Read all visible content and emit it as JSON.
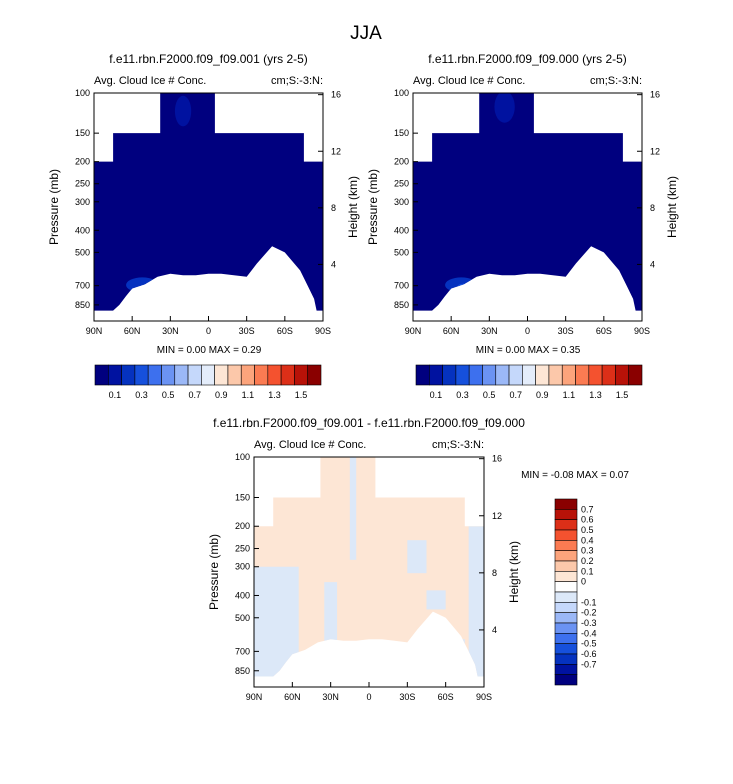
{
  "figure": {
    "title": "JJA"
  },
  "colors": {
    "abs_scale": [
      "#00007f",
      "#0012a0",
      "#0532bf",
      "#1650dc",
      "#3d70ee",
      "#6b93f3",
      "#9bb8f7",
      "#c5d8fb",
      "#e4edfb",
      "#fde6d5",
      "#fcc8aa",
      "#fca47c",
      "#fb7b52",
      "#f4522f",
      "#dc2f18",
      "#b81208",
      "#8a0000"
    ],
    "diff_scale": [
      "#00007f",
      "#0012a0",
      "#0532bf",
      "#1650dc",
      "#3d70ee",
      "#6b93f3",
      "#9bb8f7",
      "#c5d8fb",
      "#dce8f8",
      "#ffffff",
      "#fde6d5",
      "#fcc8aa",
      "#fca47c",
      "#fb7b52",
      "#f4522f",
      "#dc2f18",
      "#b81208",
      "#8a0000"
    ]
  },
  "chart_data": [
    {
      "type": "heatmap",
      "title": "f.e11.rbn.F2000.f09_f09.001 (yrs 2-5)",
      "left_string": "Avg. Cloud Ice # Conc.",
      "right_string": "cm;S:-3:N:",
      "xlabel": "",
      "ylabel": "Pressure (mb)",
      "y2label": "Height (km)",
      "x_ticks": [
        "90N",
        "60N",
        "30N",
        "0",
        "30S",
        "60S",
        "90S"
      ],
      "y_ticks": [
        "100",
        "150",
        "200",
        "250",
        "300",
        "400",
        "500",
        "700",
        "850"
      ],
      "y2_ticks": [
        "16",
        "12",
        "8",
        "4"
      ],
      "stats": {
        "min_label": "MIN =",
        "min": "0.00",
        "max_label": "MAX =",
        "max": "0.29"
      },
      "colorbar_labels": [
        "0.1",
        "0.3",
        "0.5",
        "0.7",
        "0.9",
        "1.1",
        "1.3",
        "1.5"
      ],
      "background_level": 0.05,
      "blobs": [
        {
          "lat": 52,
          "p": 695,
          "value": 0.2,
          "rx": 8,
          "dp": 55
        },
        {
          "lat": 50,
          "p": 705,
          "value": 0.29,
          "rx": 3,
          "dp": 20
        },
        {
          "lat": 20,
          "p": 120,
          "value": 0.12,
          "rx": 4,
          "dp": 20
        },
        {
          "lat": -85,
          "p": 170,
          "value": 0.12,
          "rx": 4,
          "dp": 15
        }
      ]
    },
    {
      "type": "heatmap",
      "title": "f.e11.rbn.F2000.f09_f09.000 (yrs 2-5)",
      "left_string": "Avg. Cloud Ice # Conc.",
      "right_string": "cm;S:-3:N:",
      "xlabel": "",
      "ylabel": "Pressure (mb)",
      "y2label": "Height (km)",
      "x_ticks": [
        "90N",
        "60N",
        "30N",
        "0",
        "30S",
        "60S",
        "90S"
      ],
      "y_ticks": [
        "100",
        "150",
        "200",
        "250",
        "300",
        "400",
        "500",
        "700",
        "850"
      ],
      "y2_ticks": [
        "16",
        "12",
        "8",
        "4"
      ],
      "stats": {
        "min_label": "MIN =",
        "min": "0.00",
        "max_label": "MAX =",
        "max": "0.35"
      },
      "colorbar_labels": [
        "0.1",
        "0.3",
        "0.5",
        "0.7",
        "0.9",
        "1.1",
        "1.3",
        "1.5"
      ],
      "background_level": 0.05,
      "blobs": [
        {
          "lat": 52,
          "p": 695,
          "value": 0.2,
          "rx": 8,
          "dp": 55
        },
        {
          "lat": 50,
          "p": 705,
          "value": 0.35,
          "rx": 3,
          "dp": 20
        },
        {
          "lat": 18,
          "p": 115,
          "value": 0.12,
          "rx": 5,
          "dp": 20
        },
        {
          "lat": -85,
          "p": 165,
          "value": 0.12,
          "rx": 4,
          "dp": 15
        }
      ]
    },
    {
      "type": "heatmap",
      "title": "f.e11.rbn.F2000.f09_f09.001 - f.e11.rbn.F2000.f09_f09.000",
      "left_string": "Avg. Cloud Ice # Conc.",
      "right_string": "cm;S:-3:N:",
      "xlabel": "",
      "ylabel": "Pressure (mb)",
      "y2label": "Height (km)",
      "x_ticks": [
        "90N",
        "60N",
        "30N",
        "0",
        "30S",
        "60S",
        "90S"
      ],
      "y_ticks": [
        "100",
        "150",
        "200",
        "250",
        "300",
        "400",
        "500",
        "700",
        "850"
      ],
      "y2_ticks": [
        "16",
        "12",
        "8",
        "4"
      ],
      "stats": {
        "min_label": "MIN =",
        "min": "-0.08",
        "max_label": "MAX =",
        "max": "0.07"
      },
      "colorbar_labels": [
        "0.7",
        "0.6",
        "0.5",
        "0.4",
        "0.3",
        "0.2",
        "0.1",
        "0",
        "-0.1",
        "-0.2",
        "-0.3",
        "-0.4",
        "-0.5",
        "-0.6",
        "-0.7"
      ],
      "regions": [
        {
          "lat_min": 55,
          "lat_max": 90,
          "p_min": 300,
          "p_max": 900,
          "value": -0.05
        },
        {
          "lat_min": 25,
          "lat_max": 35,
          "p_min": 350,
          "p_max": 650,
          "value": -0.05
        },
        {
          "lat_min": 10,
          "lat_max": 15,
          "p_min": 100,
          "p_max": 280,
          "value": -0.05
        },
        {
          "lat_min": -45,
          "lat_max": -30,
          "p_min": 230,
          "p_max": 320,
          "value": -0.05
        },
        {
          "lat_min": -60,
          "lat_max": -45,
          "p_min": 380,
          "p_max": 460,
          "value": -0.05
        },
        {
          "lat_min": -75,
          "lat_max": -40,
          "p_min": 620,
          "p_max": 900,
          "value": -0.05
        },
        {
          "lat_min": -90,
          "lat_max": -78,
          "p_min": 200,
          "p_max": 900,
          "value": -0.05
        }
      ]
    }
  ]
}
